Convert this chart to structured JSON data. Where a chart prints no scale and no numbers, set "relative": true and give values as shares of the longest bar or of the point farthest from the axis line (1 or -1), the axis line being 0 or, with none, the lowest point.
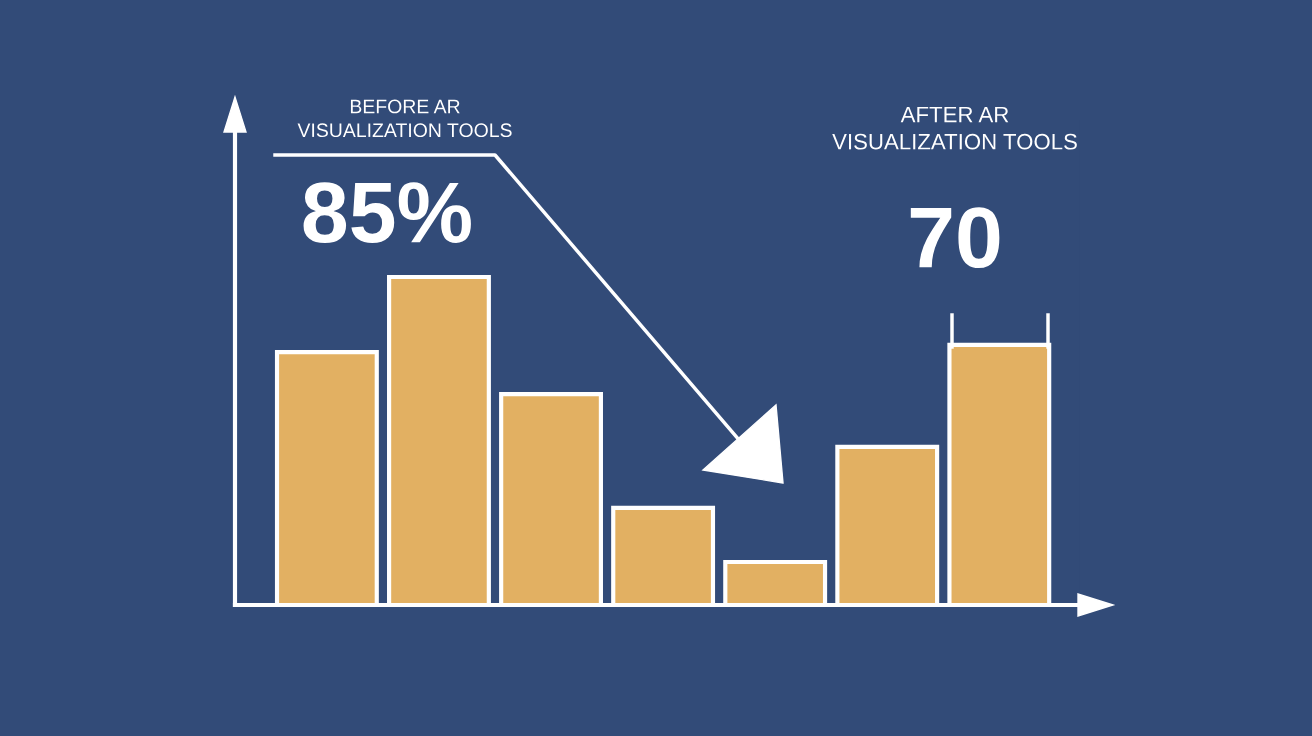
{
  "chart_data": {
    "type": "bar",
    "relative": true,
    "categories": [
      null,
      null,
      null,
      null,
      null,
      null,
      null
    ],
    "values": [
      0.771,
      1,
      0.643,
      0.296,
      0.131,
      0.482,
      0.793
    ],
    "color": "#e2b062",
    "annotations": [
      "BEFORE AR\nVISUALIZATION TOOLS",
      "85%",
      "AFTER AR\nVISUALIZATION TOOLS",
      "70"
    ]
  }
}
